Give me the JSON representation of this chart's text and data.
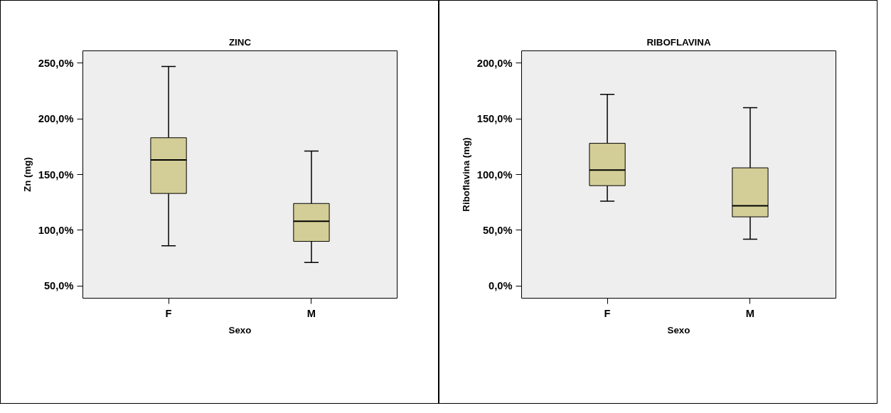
{
  "chart_data": [
    {
      "type": "box",
      "title": "ZINC",
      "xlabel": "Sexo",
      "ylabel": "Zn (mg)",
      "categories": [
        "F",
        "M"
      ],
      "color": "#d3ce97",
      "boxes": [
        {
          "low": 86,
          "q1": 133,
          "median": 163,
          "q3": 183,
          "high": 247
        },
        {
          "low": 71,
          "q1": 90,
          "median": 108,
          "q3": 124,
          "high": 171
        }
      ],
      "ylim": [
        39,
        261
      ],
      "yticks": [
        {
          "value": 50,
          "label": "50,0%"
        },
        {
          "value": 100,
          "label": "100,0%"
        },
        {
          "value": 150,
          "label": "150,0%"
        },
        {
          "value": 200,
          "label": "200,0%"
        },
        {
          "value": 250,
          "label": "250,0%"
        }
      ],
      "grid": false
    },
    {
      "type": "box",
      "title": "RIBOFLAVINA",
      "xlabel": "Sexo",
      "ylabel": "Riboflavina (mg)",
      "categories": [
        "F",
        "M"
      ],
      "color": "#d3ce97",
      "boxes": [
        {
          "low": 76,
          "q1": 90,
          "median": 104,
          "q3": 128,
          "high": 172
        },
        {
          "low": 42,
          "q1": 62,
          "median": 72,
          "q3": 106,
          "high": 160
        }
      ],
      "ylim": [
        -11,
        211
      ],
      "yticks": [
        {
          "value": 0,
          "label": "0,0%"
        },
        {
          "value": 50,
          "label": "50,0%"
        },
        {
          "value": 100,
          "label": "100,0%"
        },
        {
          "value": 150,
          "label": "150,0%"
        },
        {
          "value": 200,
          "label": "200,0%"
        }
      ],
      "grid": false
    }
  ]
}
